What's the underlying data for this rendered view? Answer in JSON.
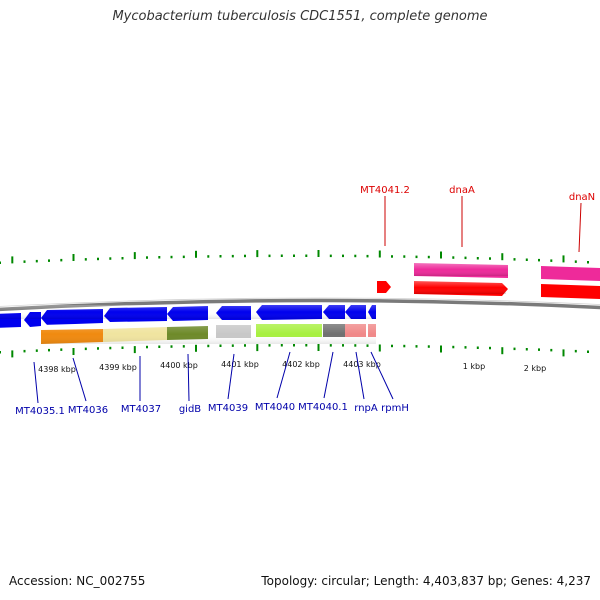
{
  "header": {
    "title": "Mycobacterium tuberculosis CDC1551, complete genome"
  },
  "footer": {
    "accession": "Accession: NC_002755",
    "summary": "Topology: circular; Length: 4,403,837 bp; Genes: 4,237"
  },
  "ruler": {
    "bottom_labels": [
      "4398 kbp",
      "4399 kbp",
      "4400 kbp",
      "4401 kbp",
      "4402 kbp",
      "4403 kbp",
      "1 kbp",
      "2 kbp"
    ]
  },
  "genes_forward": [
    {
      "name": "MT4041.2",
      "color": "#dd0000"
    },
    {
      "name": "dnaA",
      "color": "#dd0000"
    },
    {
      "name": "dnaN",
      "color": "#dd0000"
    }
  ],
  "genes_reverse": [
    {
      "name": "MT4035.1",
      "color": "#0000aa"
    },
    {
      "name": "MT4036",
      "color": "#0000aa"
    },
    {
      "name": "MT4037",
      "color": "#0000aa"
    },
    {
      "name": "gidB",
      "color": "#0000aa"
    },
    {
      "name": "MT4039",
      "color": "#0000aa"
    },
    {
      "name": "MT4040",
      "color": "#0000aa"
    },
    {
      "name": "MT4040.1",
      "color": "#0000aa"
    },
    {
      "name": "rnpA",
      "color": "#0000aa"
    },
    {
      "name": "rpmH",
      "color": "#0000aa"
    }
  ],
  "colors": {
    "forward_arrow": "#ff0000",
    "reverse_arrow": "#0000ee",
    "forward_cog": "#ee2a9a",
    "backbone": "#808080",
    "tick": "#008800"
  }
}
